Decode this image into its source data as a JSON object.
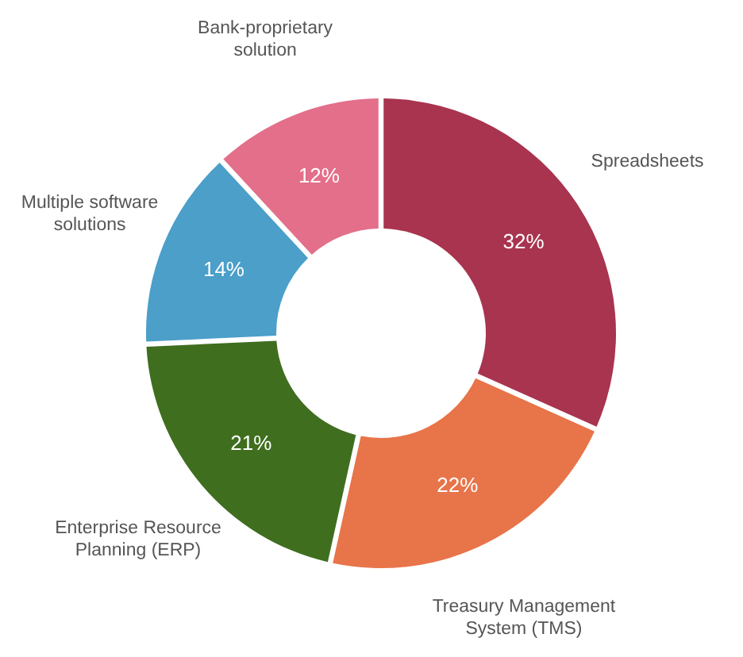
{
  "chart_data": {
    "type": "donut",
    "categories": [
      "Spreadsheets",
      "Treasury Management System (TMS)",
      "Enterprise Resource Planning (ERP)",
      "Multiple software solutions",
      "Bank-proprietary solution"
    ],
    "values": [
      32,
      22,
      21,
      14,
      12
    ],
    "colors": [
      "#a8344f",
      "#e8744a",
      "#3f6e1f",
      "#4b9fc9",
      "#e36f8a"
    ],
    "value_labels": [
      "32%",
      "22%",
      "21%",
      "14%",
      "12%"
    ]
  }
}
